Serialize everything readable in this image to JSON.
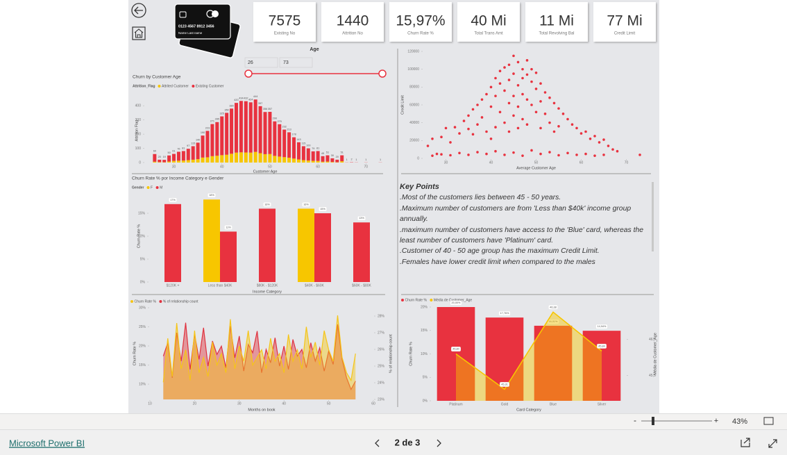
{
  "header": {
    "kpis": [
      {
        "value": "7575",
        "label": "Existing No"
      },
      {
        "value": "1440",
        "label": "Attrition No"
      },
      {
        "value": "15,97%",
        "label": "Churn Rate %"
      },
      {
        "value": "40 Mi",
        "label": "Total Trans Amt"
      },
      {
        "value": "11 Mi",
        "label": "Total Revolving Bal"
      },
      {
        "value": "77 Mi",
        "label": "Credit Limit"
      }
    ],
    "card_number": "0123 4567 8912 3456",
    "card_name": "Name  Last name"
  },
  "slicer": {
    "title": "Age",
    "min": 26,
    "max": 73
  },
  "chart_data": [
    {
      "type": "bar",
      "stacked": true,
      "title": "Churn by Customer Age",
      "legend_title": "Attrition_Flag",
      "x": [
        26,
        27,
        28,
        29,
        30,
        31,
        32,
        33,
        34,
        35,
        36,
        37,
        38,
        39,
        40,
        41,
        42,
        43,
        44,
        45,
        46,
        47,
        48,
        49,
        50,
        51,
        52,
        53,
        54,
        55,
        56,
        57,
        58,
        59,
        60,
        61,
        62,
        63,
        64,
        65,
        66,
        67,
        68,
        70,
        73
      ],
      "series": [
        {
          "name": "Attrited Customer",
          "color": "#f7c600",
          "values": [
            6,
            3,
            2,
            7,
            12,
            13,
            14,
            17,
            20,
            24,
            35,
            37,
            45,
            48,
            52,
            55,
            62,
            70,
            72,
            71,
            70,
            75,
            66,
            59,
            60,
            47,
            42,
            38,
            34,
            28,
            22,
            17,
            14,
            12,
            11,
            6,
            7,
            4,
            2,
            9,
            0,
            0,
            0,
            0,
            0
          ]
        },
        {
          "name": "Existing Customer",
          "color": "#e8323f",
          "values": [
            54,
            17,
            17,
            43,
            49,
            63,
            67,
            80,
            95,
            116,
            155,
            186,
            226,
            237,
            273,
            295,
            318,
            350,
            362,
            361,
            354,
            369,
            331,
            297,
            297,
            243,
            228,
            194,
            179,
            150,
            121,
            98,
            86,
            67,
            70,
            39,
            44,
            26,
            18,
            42,
            1,
            2,
            1,
            1,
            1
          ]
        }
      ],
      "total_labels": [
        "60",
        "20",
        "19",
        "50",
        "61",
        "76",
        "81",
        "97",
        "115",
        "140",
        "190",
        "223",
        "271",
        "285",
        "325",
        "350",
        "380",
        "420",
        "434",
        "432",
        "424",
        "444",
        "397",
        "356",
        "357",
        "290",
        "270",
        "232",
        "213",
        "178",
        "143",
        "115",
        "100",
        "79",
        "81",
        "45",
        "51",
        "30",
        "20",
        "51",
        "1",
        "2",
        "1",
        "1",
        "1"
      ],
      "xlim": [
        24,
        74
      ],
      "xticks": [
        30,
        40,
        50,
        60,
        70
      ],
      "ylim": [
        0,
        450
      ],
      "yticks": [
        0,
        100,
        200,
        300,
        400
      ],
      "x_label": "Customer Age",
      "y_label": "Attrition Flag"
    },
    {
      "type": "scatter",
      "color": "#e8323f",
      "x": [
        26,
        27,
        28,
        29,
        30,
        31,
        32,
        33,
        34,
        35,
        35,
        36,
        36,
        37,
        37,
        38,
        38,
        39,
        39,
        40,
        40,
        40,
        41,
        41,
        41,
        42,
        42,
        42,
        43,
        43,
        43,
        44,
        44,
        44,
        44,
        45,
        45,
        45,
        45,
        46,
        46,
        46,
        46,
        47,
        47,
        47,
        47,
        48,
        48,
        48,
        48,
        49,
        49,
        49,
        50,
        50,
        50,
        51,
        51,
        51,
        52,
        52,
        53,
        53,
        54,
        54,
        55,
        55,
        56,
        57,
        58,
        59,
        60,
        61,
        62,
        63,
        64,
        65,
        66,
        67,
        68,
        73,
        27,
        29,
        31,
        33,
        35,
        37,
        39,
        41,
        43,
        45,
        47,
        49,
        51,
        53,
        55,
        57,
        59,
        61,
        63,
        65
      ],
      "values": [
        14000,
        22000,
        5000,
        24000,
        34000,
        18000,
        35000,
        28000,
        42000,
        33000,
        48000,
        27000,
        55000,
        60000,
        38000,
        46000,
        66000,
        72000,
        30000,
        58000,
        80000,
        22000,
        70000,
        90000,
        35000,
        52000,
        84000,
        98000,
        76000,
        102000,
        40000,
        62000,
        88000,
        105000,
        30000,
        95000,
        70000,
        115000,
        48000,
        82000,
        108000,
        58000,
        34000,
        100000,
        72000,
        90000,
        44000,
        94000,
        66000,
        110000,
        38000,
        86000,
        60000,
        100000,
        78000,
        96000,
        52000,
        84000,
        64000,
        34000,
        74000,
        50000,
        68000,
        40000,
        62000,
        30000,
        56000,
        36000,
        50000,
        44000,
        38000,
        34000,
        28000,
        30000,
        22000,
        25000,
        18000,
        21000,
        14000,
        10000,
        8000,
        4000,
        3000,
        4500,
        3500,
        6000,
        4000,
        7000,
        5000,
        8000,
        4000,
        6500,
        3000,
        9000,
        5000,
        7000,
        3500,
        6000,
        4000,
        5000,
        3000,
        4000
      ],
      "xlim": [
        25,
        75
      ],
      "xticks": [
        30,
        40,
        50,
        60,
        70
      ],
      "ylim": [
        0,
        120000
      ],
      "yticks": [
        0,
        20000,
        40000,
        60000,
        80000,
        100000,
        120000
      ],
      "x_label": "Average Customer Age",
      "y_label": "Credit Limit"
    },
    {
      "type": "bar",
      "title": "Churn Rate % por Income Category e Gender",
      "legend_title": "Gender",
      "categories": [
        "$120K +",
        "Less than $40K",
        "$80K - $120K",
        "$40K - $60K",
        "$60K - $80K"
      ],
      "series": [
        {
          "name": "F",
          "color": "#f7c600",
          "values": [
            null,
            18,
            null,
            16,
            null
          ],
          "value_labels": [
            null,
            "18%",
            null,
            "16%",
            null
          ]
        },
        {
          "name": "M",
          "color": "#e8323f",
          "values": [
            17,
            11,
            16,
            15,
            13
          ],
          "value_labels": [
            "17%",
            "11%",
            "16%",
            "15%",
            "13%"
          ]
        }
      ],
      "ylim": [
        0,
        20
      ],
      "yticks": [
        {
          "value": 0,
          "label": "0%"
        },
        {
          "value": 5,
          "label": "5%"
        },
        {
          "value": 10,
          "label": "10%"
        },
        {
          "value": 15,
          "label": "15%"
        }
      ],
      "x_label": "Income Category",
      "y_label": "Churn Rate %"
    },
    {
      "type": "area",
      "x": [
        13,
        14,
        15,
        16,
        17,
        18,
        19,
        20,
        21,
        22,
        23,
        24,
        25,
        26,
        27,
        28,
        29,
        30,
        31,
        32,
        33,
        34,
        35,
        36,
        37,
        38,
        39,
        40,
        41,
        42,
        43,
        44,
        45,
        46,
        47,
        48,
        49,
        50,
        51,
        52,
        53,
        54,
        55,
        56
      ],
      "series": [
        {
          "name": "Churn Rate %",
          "color": "#f5c518",
          "values": [
            10.5,
            22,
            12,
            26,
            14,
            19,
            11,
            24,
            13,
            17,
            12,
            21,
            15,
            18,
            13,
            27,
            14,
            20,
            16,
            24,
            15,
            17,
            19,
            14,
            22,
            16,
            18,
            13,
            23,
            16,
            19,
            14,
            25,
            17,
            21,
            15,
            24,
            19,
            16,
            28,
            17,
            13,
            11,
            18
          ]
        },
        {
          "name": "% of relationship count",
          "color": "#e0323f",
          "axis": "y2",
          "values": [
            25.6,
            26.4,
            24.3,
            27.0,
            25.3,
            27.6,
            24.8,
            26.9,
            25.4,
            27.3,
            25.0,
            26.5,
            25.7,
            26.2,
            24.9,
            27.4,
            25.5,
            26.8,
            24.7,
            26.3,
            25.8,
            27.1,
            24.6,
            26.0,
            25.2,
            26.7,
            25.0,
            26.2,
            24.8,
            26.6,
            25.6,
            26.0,
            24.9,
            26.4,
            25.3,
            26.1,
            24.7,
            25.9,
            25.1,
            27.5,
            25.4,
            24.3,
            23.6,
            24.1
          ]
        }
      ],
      "xlim": [
        10,
        60
      ],
      "xticks": [
        10,
        20,
        30,
        40,
        50,
        60
      ],
      "ylim": [
        6,
        30
      ],
      "yticks": [
        {
          "value": 10,
          "label": "10%"
        },
        {
          "value": 15,
          "label": "15%"
        },
        {
          "value": 20,
          "label": "20%"
        },
        {
          "value": 25,
          "label": "25%"
        },
        {
          "value": 30,
          "label": "30%"
        }
      ],
      "y2lim": [
        23,
        28.5
      ],
      "y2ticks": [
        {
          "value": 23,
          "label": "23%"
        },
        {
          "value": 24,
          "label": "24%"
        },
        {
          "value": 25,
          "label": "25%"
        },
        {
          "value": 26,
          "label": "26%"
        },
        {
          "value": 27,
          "label": "27%"
        },
        {
          "value": 28,
          "label": "28%"
        }
      ],
      "x_label": "Months on book",
      "y_label": "Churn Rate %",
      "y2_label": "% of relationship count"
    },
    {
      "type": "bar",
      "categories": [
        "Platinum",
        "Gold",
        "Blue",
        "Silver"
      ],
      "series": [
        {
          "name": "Churn Rate %",
          "color": "#e8323f",
          "values": [
            20,
            17.76,
            16.01,
            14.94
          ],
          "value_labels": [
            "20,00%",
            "17,76%",
            "16,01%",
            "14,94%"
          ]
        },
        {
          "name": "Média de Customer_Age",
          "type": "line",
          "axis": "y2",
          "color": "#f7c600",
          "values": [
            45.8,
            45.31,
            46.38,
            45.84
          ],
          "value_labels": [
            "45,80",
            "45,31",
            "46,38",
            "45,84"
          ]
        }
      ],
      "ylim": [
        0,
        20
      ],
      "yticks": [
        {
          "value": 0,
          "label": "0%"
        },
        {
          "value": 5,
          "label": "5%"
        },
        {
          "value": 10,
          "label": "10%"
        },
        {
          "value": 15,
          "label": "15%"
        },
        {
          "value": 20,
          "label": "20%"
        }
      ],
      "y2lim": [
        45.15,
        46.45
      ],
      "y2ticks": [
        {
          "value": 45.5,
          "label": "45,5"
        },
        {
          "value": 46,
          "label": "46,0"
        }
      ],
      "x_label": "Card Category",
      "y_label": "Churn Rate %",
      "y2_label": "Média de Customer_Age"
    }
  ],
  "key_points": {
    "title": "Key Points",
    "items": [
      ".Most of the customers lies between 45 - 50 years.",
      ".Maximum number of customers are from 'Less than $40k' income group annually.",
      ".maximum number of customers have access to the 'Blue' card, whereas the least number of customers have 'Platinum' card.",
      ".Customer of 40 - 50 age group has the maximum Credit Limit.",
      ".Females have lower credit limit when compared to the males"
    ]
  },
  "footer": {
    "brand": "Microsoft Power BI",
    "page": "2 de 3",
    "zoom": "43%"
  }
}
